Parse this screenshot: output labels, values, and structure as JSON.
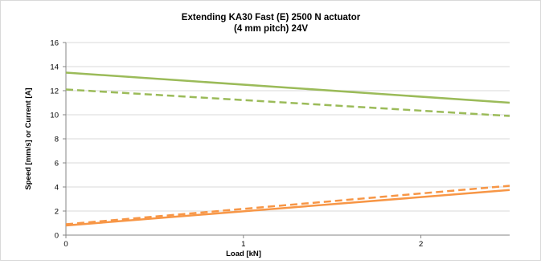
{
  "chart_data": {
    "type": "line",
    "title_lines": [
      "Extending KA30 Fast (E) 2500 N actuator",
      "(4 mm pitch) 24V"
    ],
    "xlabel": "Load [kN]",
    "ylabel": "Speed [mm/s] or Current [A]",
    "xlim": [
      0,
      2.5
    ],
    "ylim": [
      0,
      16
    ],
    "x_ticks": [
      0,
      1,
      2
    ],
    "y_ticks": [
      0,
      2,
      4,
      6,
      8,
      10,
      12,
      14,
      16
    ],
    "grid": "horizontal",
    "legend": "none",
    "series": [
      {
        "color": "#9bbb59",
        "dash": "solid",
        "x": [
          0,
          2.5
        ],
        "y": [
          13.5,
          11.0
        ]
      },
      {
        "color": "#9bbb59",
        "dash": "dashed",
        "x": [
          0,
          2.5
        ],
        "y": [
          12.1,
          9.9
        ]
      },
      {
        "color": "#f79646",
        "dash": "solid",
        "x": [
          0,
          2.5
        ],
        "y": [
          0.8,
          3.75
        ]
      },
      {
        "color": "#f79646",
        "dash": "dashed",
        "x": [
          0,
          2.5
        ],
        "y": [
          0.9,
          4.1
        ]
      }
    ]
  }
}
